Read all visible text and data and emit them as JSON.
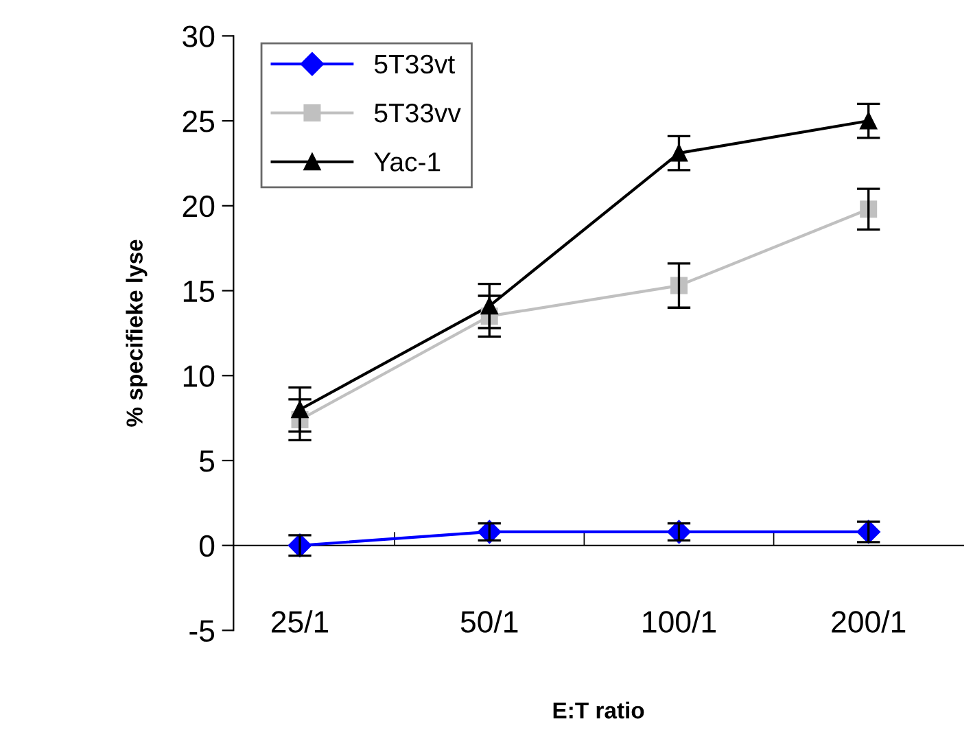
{
  "chart_data": {
    "type": "line",
    "xlabel": "E:T ratio",
    "ylabel": "% specifieke lyse",
    "categories": [
      "25/1",
      "50/1",
      "100/1",
      "200/1"
    ],
    "series": [
      {
        "name": "5T33vt",
        "color": "#0000ff",
        "marker": "diamond",
        "values": [
          0,
          0.8,
          0.8,
          0.8
        ],
        "errors": [
          0.6,
          0.5,
          0.5,
          0.6
        ]
      },
      {
        "name": "5T33vv",
        "color": "#c0c0c0",
        "marker": "square",
        "values": [
          7.4,
          13.5,
          15.3,
          19.8
        ],
        "errors": [
          1.2,
          1.2,
          1.3,
          1.2
        ]
      },
      {
        "name": "Yac-1",
        "color": "#000000",
        "marker": "triangle",
        "values": [
          8.0,
          14.1,
          23.1,
          25.0
        ],
        "errors": [
          1.3,
          1.3,
          1.0,
          1.0
        ]
      }
    ],
    "ylim": [
      -5,
      30
    ],
    "yticks": [
      -5,
      0,
      5,
      10,
      15,
      20,
      25,
      30
    ],
    "grid": false,
    "legend": "top left",
    "line_style": "solid"
  }
}
